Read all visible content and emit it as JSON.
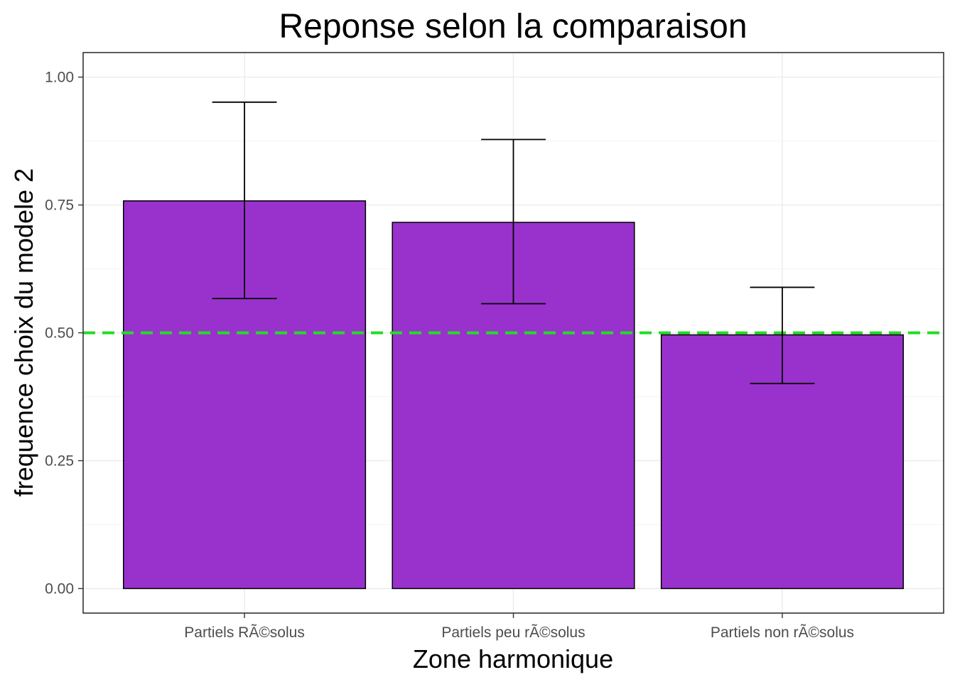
{
  "chart_data": {
    "type": "bar",
    "title": "Reponse selon la comparaison",
    "xlabel": "Zone harmonique",
    "ylabel": "frequence choix du modele 2",
    "categories": [
      "Partiels RÃ©solus",
      "Partiels peu rÃ©solus",
      "Partiels non rÃ©solus"
    ],
    "values": [
      0.758,
      0.716,
      0.496
    ],
    "error_low": [
      0.567,
      0.557,
      0.401
    ],
    "error_high": [
      0.951,
      0.878,
      0.589
    ],
    "ylim": [
      -0.048,
      1.048
    ],
    "yticks": [
      0.0,
      0.25,
      0.5,
      0.75,
      1.0
    ],
    "ytick_labels": [
      "0.00",
      "0.25",
      "0.50",
      "0.75",
      "1.00"
    ],
    "reference_line": {
      "y": 0.5,
      "style": "dashed"
    },
    "grid": true,
    "legend": "none",
    "colors": {
      "bar_fill": "#9932CC",
      "reference_line": "#22DD22"
    }
  }
}
